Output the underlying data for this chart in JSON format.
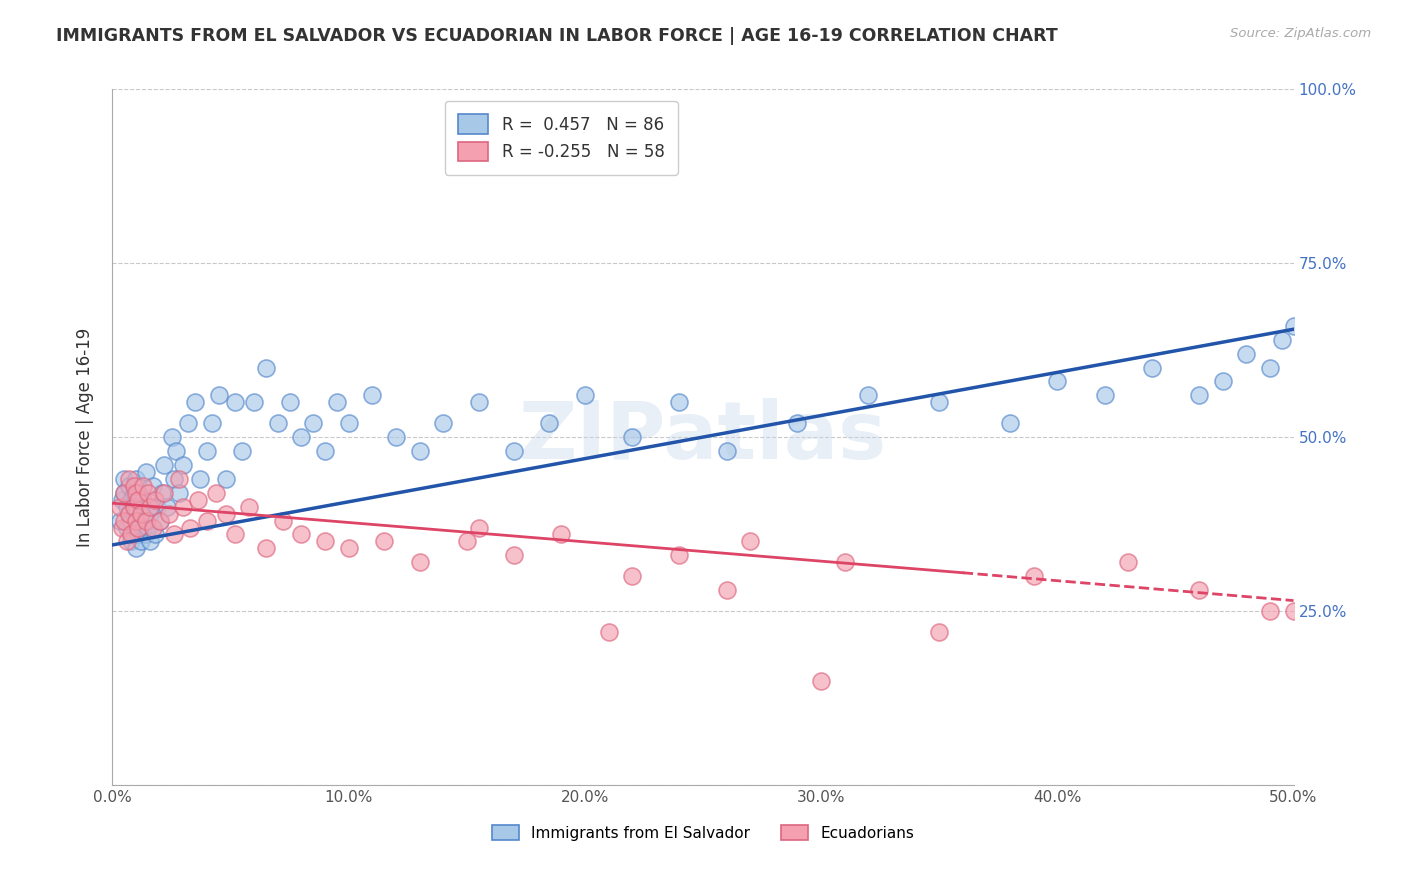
{
  "title": "IMMIGRANTS FROM EL SALVADOR VS ECUADORIAN IN LABOR FORCE | AGE 16-19 CORRELATION CHART",
  "source": "Source: ZipAtlas.com",
  "ylabel": "In Labor Force | Age 16-19",
  "xmin": 0.0,
  "xmax": 0.5,
  "ymin": 0.0,
  "ymax": 1.0,
  "yticks": [
    0.0,
    0.25,
    0.5,
    0.75,
    1.0
  ],
  "ytick_labels": [
    "",
    "25.0%",
    "50.0%",
    "75.0%",
    "100.0%"
  ],
  "xticks": [
    0.0,
    0.1,
    0.2,
    0.3,
    0.4,
    0.5
  ],
  "xtick_labels": [
    "0.0%",
    "10.0%",
    "20.0%",
    "30.0%",
    "40.0%",
    "50.0%"
  ],
  "blue_R": 0.457,
  "blue_N": 86,
  "pink_R": -0.255,
  "pink_N": 58,
  "blue_color": "#a8c8e8",
  "pink_color": "#f4a0b0",
  "blue_edge_color": "#5588cc",
  "pink_edge_color": "#dd6680",
  "blue_line_color": "#2255aa",
  "pink_line_color": "#dd4466",
  "blue_label": "Immigrants from El Salvador",
  "pink_label": "Ecuadorians",
  "watermark": "ZIPatlas",
  "blue_scatter_x": [
    0.003,
    0.004,
    0.005,
    0.005,
    0.006,
    0.006,
    0.007,
    0.007,
    0.008,
    0.008,
    0.008,
    0.009,
    0.009,
    0.009,
    0.01,
    0.01,
    0.01,
    0.01,
    0.011,
    0.011,
    0.011,
    0.012,
    0.012,
    0.013,
    0.013,
    0.014,
    0.014,
    0.014,
    0.015,
    0.015,
    0.016,
    0.016,
    0.017,
    0.018,
    0.019,
    0.02,
    0.021,
    0.022,
    0.023,
    0.025,
    0.026,
    0.027,
    0.028,
    0.03,
    0.032,
    0.035,
    0.037,
    0.04,
    0.042,
    0.045,
    0.048,
    0.052,
    0.055,
    0.06,
    0.065,
    0.07,
    0.075,
    0.08,
    0.085,
    0.09,
    0.095,
    0.1,
    0.11,
    0.12,
    0.13,
    0.14,
    0.155,
    0.17,
    0.185,
    0.2,
    0.22,
    0.24,
    0.26,
    0.29,
    0.32,
    0.35,
    0.38,
    0.4,
    0.42,
    0.44,
    0.46,
    0.47,
    0.48,
    0.49,
    0.495,
    0.5
  ],
  "blue_scatter_y": [
    0.38,
    0.41,
    0.44,
    0.42,
    0.37,
    0.4,
    0.39,
    0.43,
    0.35,
    0.38,
    0.41,
    0.36,
    0.39,
    0.42,
    0.34,
    0.37,
    0.4,
    0.44,
    0.36,
    0.38,
    0.42,
    0.35,
    0.39,
    0.37,
    0.41,
    0.36,
    0.38,
    0.45,
    0.37,
    0.4,
    0.35,
    0.39,
    0.43,
    0.36,
    0.4,
    0.38,
    0.42,
    0.46,
    0.4,
    0.5,
    0.44,
    0.48,
    0.42,
    0.46,
    0.52,
    0.55,
    0.44,
    0.48,
    0.52,
    0.56,
    0.44,
    0.55,
    0.48,
    0.55,
    0.6,
    0.52,
    0.55,
    0.5,
    0.52,
    0.48,
    0.55,
    0.52,
    0.56,
    0.5,
    0.48,
    0.52,
    0.55,
    0.48,
    0.52,
    0.56,
    0.5,
    0.55,
    0.48,
    0.52,
    0.56,
    0.55,
    0.52,
    0.58,
    0.56,
    0.6,
    0.56,
    0.58,
    0.62,
    0.6,
    0.64,
    0.66
  ],
  "pink_scatter_x": [
    0.003,
    0.004,
    0.005,
    0.005,
    0.006,
    0.007,
    0.007,
    0.008,
    0.009,
    0.009,
    0.01,
    0.01,
    0.011,
    0.011,
    0.012,
    0.013,
    0.014,
    0.015,
    0.016,
    0.017,
    0.018,
    0.02,
    0.022,
    0.024,
    0.026,
    0.028,
    0.03,
    0.033,
    0.036,
    0.04,
    0.044,
    0.048,
    0.052,
    0.058,
    0.065,
    0.072,
    0.08,
    0.09,
    0.1,
    0.115,
    0.13,
    0.15,
    0.17,
    0.19,
    0.21,
    0.24,
    0.27,
    0.31,
    0.35,
    0.39,
    0.43,
    0.46,
    0.49,
    0.5,
    0.155,
    0.22,
    0.26,
    0.3
  ],
  "pink_scatter_y": [
    0.4,
    0.37,
    0.42,
    0.38,
    0.35,
    0.39,
    0.44,
    0.36,
    0.4,
    0.43,
    0.38,
    0.42,
    0.37,
    0.41,
    0.39,
    0.43,
    0.38,
    0.42,
    0.4,
    0.37,
    0.41,
    0.38,
    0.42,
    0.39,
    0.36,
    0.44,
    0.4,
    0.37,
    0.41,
    0.38,
    0.42,
    0.39,
    0.36,
    0.4,
    0.34,
    0.38,
    0.36,
    0.35,
    0.34,
    0.35,
    0.32,
    0.35,
    0.33,
    0.36,
    0.22,
    0.33,
    0.35,
    0.32,
    0.22,
    0.3,
    0.32,
    0.28,
    0.25,
    0.25,
    0.37,
    0.3,
    0.28,
    0.15
  ],
  "blue_line_x0": 0.0,
  "blue_line_y0": 0.345,
  "blue_line_x1": 0.5,
  "blue_line_y1": 0.655,
  "pink_line_x0": 0.0,
  "pink_line_y0": 0.405,
  "pink_line_x1_solid": 0.36,
  "pink_line_y1_solid": 0.305,
  "pink_line_x1_dash": 0.5,
  "pink_line_y1_dash": 0.265
}
